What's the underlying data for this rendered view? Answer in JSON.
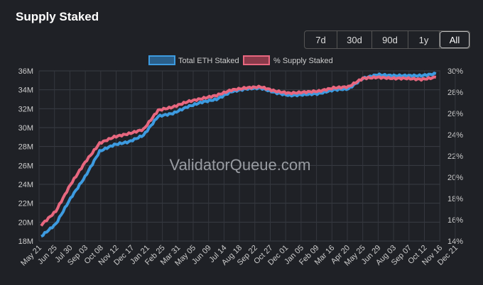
{
  "title": "Supply Staked",
  "range_buttons": [
    {
      "label": "7d",
      "active": false
    },
    {
      "label": "30d",
      "active": false
    },
    {
      "label": "90d",
      "active": false
    },
    {
      "label": "1y",
      "active": false
    },
    {
      "label": "All",
      "active": true
    }
  ],
  "watermark": "ValidatorQueue.com",
  "chart_data": {
    "type": "line",
    "categories": [
      "May 21",
      "Jun 25",
      "Jul 30",
      "Sep 03",
      "Oct 08",
      "Nov 12",
      "Dec 17",
      "Jan 21",
      "Feb 25",
      "Mar 31",
      "May 05",
      "Jun 09",
      "Jul 14",
      "Aug 18",
      "Sep 22",
      "Oct 27",
      "Dec 01",
      "Jan 05",
      "Feb 09",
      "Mar 16",
      "Apr 20",
      "May 25",
      "Jun 29",
      "Aug 03",
      "Sep 07",
      "Oct 12",
      "Nov 16",
      "Dec 21"
    ],
    "series": [
      {
        "name": "Total ETH Staked",
        "axis": "left",
        "color": "#3d9be0",
        "values": [
          18.5,
          19.8,
          22.5,
          24.8,
          27.5,
          28.2,
          28.5,
          29.2,
          31.2,
          31.5,
          32.2,
          32.7,
          33.0,
          33.8,
          34.1,
          34.2,
          33.7,
          33.4,
          33.5,
          33.6,
          34.0,
          34.1,
          35.2,
          35.6,
          35.5,
          35.5,
          35.5,
          35.7
        ]
      },
      {
        "name": "% Supply Staked",
        "axis": "right",
        "color": "#e8677f",
        "values": [
          15.5,
          16.8,
          19.3,
          21.4,
          23.2,
          23.8,
          24.1,
          24.5,
          26.3,
          26.6,
          27.1,
          27.4,
          27.7,
          28.2,
          28.4,
          28.5,
          28.1,
          27.9,
          28.0,
          28.1,
          28.4,
          28.5,
          29.3,
          29.4,
          29.3,
          29.3,
          29.2,
          29.4
        ]
      }
    ],
    "legend": [
      "Total ETH Staked",
      "% Supply Staked"
    ],
    "legend_position": "top-center",
    "y_left": {
      "ticks": [
        "18M",
        "20M",
        "22M",
        "24M",
        "26M",
        "28M",
        "30M",
        "32M",
        "34M",
        "36M"
      ],
      "range": [
        18,
        36
      ],
      "unit": "M"
    },
    "y_right": {
      "ticks": [
        "14%",
        "16%",
        "18%",
        "20%",
        "22%",
        "24%",
        "26%",
        "28%",
        "30%"
      ],
      "range": [
        14,
        30
      ],
      "unit": "%"
    },
    "grid": true
  }
}
